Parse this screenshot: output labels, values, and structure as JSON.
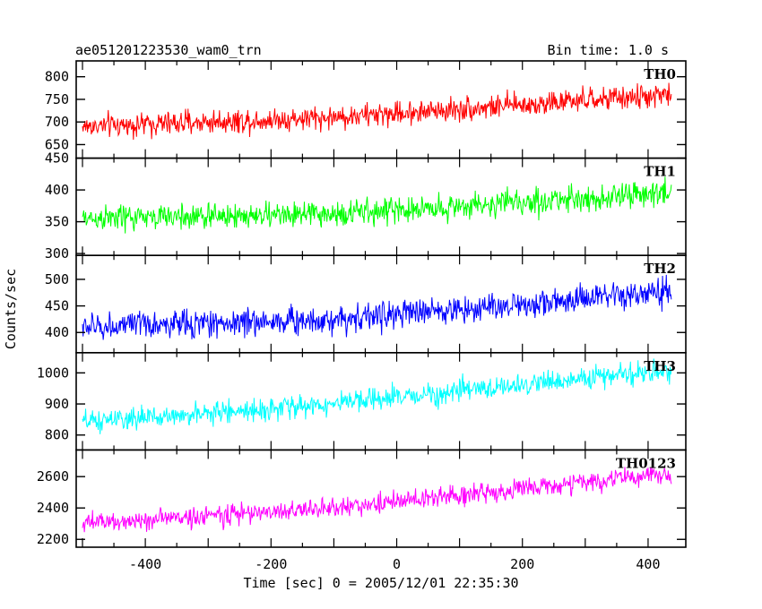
{
  "chart_data": {
    "type": "line",
    "title": "ae051201223530_wam0_trn",
    "subtitle": "Bin time: 1.0 s",
    "xlabel": "Time [sec] 0 = 2005/12/01 22:35:30",
    "ylabel": "Counts/sec",
    "xlim": [
      -510,
      460
    ],
    "x_ticks": [
      -400,
      -200,
      0,
      200,
      400
    ],
    "x_range": [
      -500,
      437
    ],
    "bin_time_s": 1.0,
    "panels": [
      {
        "name": "TH0",
        "color": "#ff0000",
        "ylim": [
          620,
          835
        ],
        "y_ticks": [
          650,
          700,
          750,
          800
        ],
        "trend": [
          [
            -500,
            690
          ],
          [
            -100,
            710
          ],
          [
            437,
            760
          ]
        ],
        "noise_amplitude": 45
      },
      {
        "name": "TH1",
        "color": "#00ff00",
        "ylim": [
          297,
          450
        ],
        "y_ticks": [
          300,
          350,
          400,
          450
        ],
        "trend": [
          [
            -500,
            355
          ],
          [
            -100,
            362
          ],
          [
            437,
            395
          ]
        ],
        "noise_amplitude": 35
      },
      {
        "name": "TH2",
        "color": "#0000ff",
        "ylim": [
          362,
          545
        ],
        "y_ticks": [
          400,
          450,
          500
        ],
        "trend": [
          [
            -500,
            410
          ],
          [
            -100,
            425
          ],
          [
            437,
            475
          ]
        ],
        "noise_amplitude": 45
      },
      {
        "name": "TH3",
        "color": "#00ffff",
        "ylim": [
          752,
          1065
        ],
        "y_ticks": [
          800,
          900,
          1000
        ],
        "trend": [
          [
            -500,
            840
          ],
          [
            -100,
            900
          ],
          [
            437,
            1010
          ]
        ],
        "noise_amplitude": 60
      },
      {
        "name": "TH0123",
        "color": "#ff00ff",
        "ylim": [
          2150,
          2770
        ],
        "y_ticks": [
          2200,
          2400,
          2600
        ],
        "trend": [
          [
            -500,
            2300
          ],
          [
            -100,
            2400
          ],
          [
            437,
            2620
          ]
        ],
        "noise_amplitude": 110
      }
    ]
  }
}
